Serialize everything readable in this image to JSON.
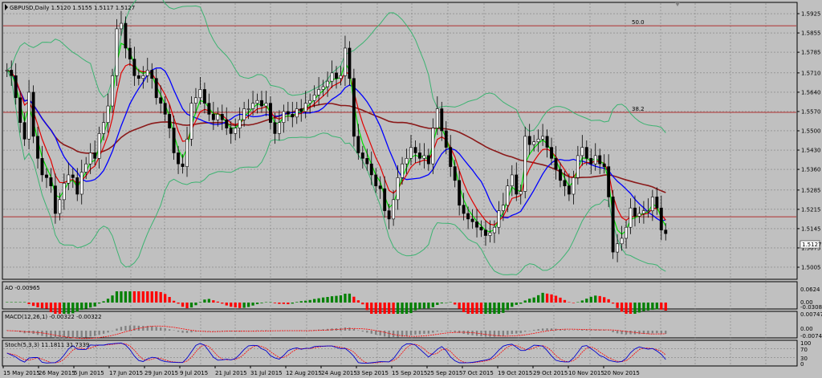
{
  "header": {
    "info": "GBPUSD,Daily  1.5120 1.5155 1.5117 1.5127",
    "ao_label": "AO -0.00965",
    "macd_label": "MACD(12,26,1) -0.00322 -0.00322",
    "stoch_label": "Stoch(5,3,3) 11.1811 31.7339"
  },
  "colors": {
    "background": "#c0c0c0",
    "grid": "#808080",
    "bull_candle": "#ffffff",
    "bear_candle": "#000000",
    "sma_long": "#8b1a1a",
    "ema_fast": "#e00000",
    "ema_mid": "#00e000",
    "sma_slow": "#0000ff",
    "bollinger": "#3cb371",
    "level_line": "#b03030",
    "price_tag": "#ffffff",
    "ao_up": "#008000",
    "ao_down": "#ff0000",
    "macd_bar": "#808080",
    "macd_signal": "#ff0000",
    "stoch_main": "#0000cd",
    "stoch_signal": "#ff0000"
  },
  "price_tag": "1.5127",
  "levels": [
    {
      "label": "50.0",
      "value": 1.5881
    },
    {
      "label": "38.2",
      "value": 1.5567
    },
    {
      "label": "",
      "value": 1.5188
    }
  ],
  "chart_data": {
    "type": "candlestick",
    "symbol": "GBPUSD",
    "timeframe": "Daily",
    "ohlc_last": {
      "open": 1.512,
      "high": 1.5155,
      "low": 1.5117,
      "close": 1.5127
    },
    "price_axis": {
      "min": 1.497,
      "max": 1.596,
      "ticks": [
        "1.5925",
        "1.5855",
        "1.5785",
        "1.5710",
        "1.5640",
        "1.5570",
        "1.5500",
        "1.5430",
        "1.5360",
        "1.5285",
        "1.5215",
        "1.5145",
        "1.5075",
        "1.5005"
      ]
    },
    "x_ticks": [
      "15 May 2015",
      "26 May 2015",
      "5 Jun 2015",
      "17 Jun 2015",
      "29 Jun 2015",
      "9 Jul 2015",
      "21 Jul 2015",
      "31 Jul 2015",
      "12 Aug 2015",
      "24 Aug 2015",
      "3 Sep 2015",
      "15 Sep 2015",
      "25 Sep 2015",
      "7 Oct 2015",
      "19 Oct 2015",
      "29 Oct 2015",
      "10 Nov 2015",
      "20 Nov 2015"
    ],
    "close": [
      1.572,
      1.57,
      1.562,
      1.553,
      1.547,
      1.564,
      1.548,
      1.54,
      1.534,
      1.533,
      1.53,
      1.52,
      1.525,
      1.531,
      1.534,
      1.533,
      1.527,
      1.535,
      1.538,
      1.542,
      1.54,
      1.549,
      1.553,
      1.559,
      1.57,
      1.587,
      1.589,
      1.58,
      1.576,
      1.57,
      1.569,
      1.57,
      1.572,
      1.569,
      1.562,
      1.56,
      1.556,
      1.551,
      1.542,
      1.538,
      1.537,
      1.547,
      1.56,
      1.562,
      1.565,
      1.56,
      1.556,
      1.554,
      1.556,
      1.554,
      1.551,
      1.549,
      1.551,
      1.554,
      1.558,
      1.558,
      1.56,
      1.561,
      1.559,
      1.56,
      1.553,
      1.549,
      1.553,
      1.557,
      1.556,
      1.555,
      1.558,
      1.557,
      1.56,
      1.561,
      1.563,
      1.565,
      1.566,
      1.568,
      1.571,
      1.569,
      1.57,
      1.58,
      1.569,
      1.548,
      1.542,
      1.54,
      1.538,
      1.534,
      1.53,
      1.529,
      1.521,
      1.518,
      1.525,
      1.533,
      1.538,
      1.54,
      1.544,
      1.542,
      1.54,
      1.541,
      1.538,
      1.551,
      1.558,
      1.55,
      1.544,
      1.537,
      1.532,
      1.523,
      1.52,
      1.518,
      1.517,
      1.515,
      1.514,
      1.512,
      1.513,
      1.515,
      1.521,
      1.523,
      1.53,
      1.534,
      1.527,
      1.528,
      1.548,
      1.545,
      1.546,
      1.547,
      1.548,
      1.544,
      1.54,
      1.536,
      1.532,
      1.53,
      1.527,
      1.533,
      1.541,
      1.544,
      1.54,
      1.538,
      1.541,
      1.538,
      1.537,
      1.526,
      1.506,
      1.509,
      1.511,
      1.515,
      1.522,
      1.519,
      1.52,
      1.521,
      1.521,
      1.526,
      1.522,
      1.514,
      1.5127
    ],
    "series": [
      {
        "name": "SMA long",
        "color": "#8b1a1a"
      },
      {
        "name": "EMA fast",
        "color": "#e00000"
      },
      {
        "name": "EMA mid",
        "color": "#00e000"
      },
      {
        "name": "SMA slow",
        "color": "#0000ff"
      },
      {
        "name": "Bollinger",
        "color": "#3cb371"
      }
    ],
    "ao": {
      "value": -0.00965,
      "axis": [
        "0.0624",
        "0.00",
        "-0.03089"
      ]
    },
    "macd": {
      "value": -0.00322,
      "signal": -0.00322,
      "axis": [
        "0.00747",
        "0.00",
        "-0.00747"
      ]
    },
    "stoch": {
      "main": 11.1811,
      "signal": 31.7339,
      "axis": [
        "100",
        "70",
        "30",
        "0"
      ]
    }
  }
}
